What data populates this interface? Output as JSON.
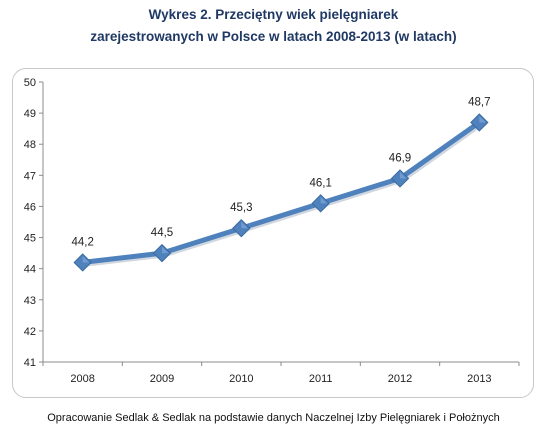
{
  "title": {
    "line1": "Wykres 2. Przeciętny wiek pielęgniarek",
    "line2": "zarejestrowanych w Polsce w latach 2008-2013 (w latach)"
  },
  "footer": "Opracowanie Sedlak & Sedlak na podstawie danych Naczelnej Izby Pielęgniarek i Położnych",
  "chart_data": {
    "type": "line",
    "title": "Wykres 2. Przeciętny wiek pielęgniarek zarejestrowanych w Polsce w latach 2008-2013 (w latach)",
    "xlabel": "",
    "ylabel": "",
    "categories": [
      "2008",
      "2009",
      "2010",
      "2011",
      "2012",
      "2013"
    ],
    "series": [
      {
        "values": [
          44.2,
          44.5,
          45.3,
          46.1,
          46.9,
          48.7
        ],
        "labels": [
          "44,2",
          "44,5",
          "45,3",
          "46,1",
          "46,9",
          "48,7"
        ]
      }
    ],
    "ylim": [
      41,
      50
    ],
    "yticks": [
      "41",
      "42",
      "43",
      "44",
      "45",
      "46",
      "47",
      "48",
      "49",
      "50"
    ],
    "grid": false,
    "legend": "none",
    "marker": "diamond",
    "line_color": "#4f81bd",
    "marker_color": "#4f81bd"
  }
}
